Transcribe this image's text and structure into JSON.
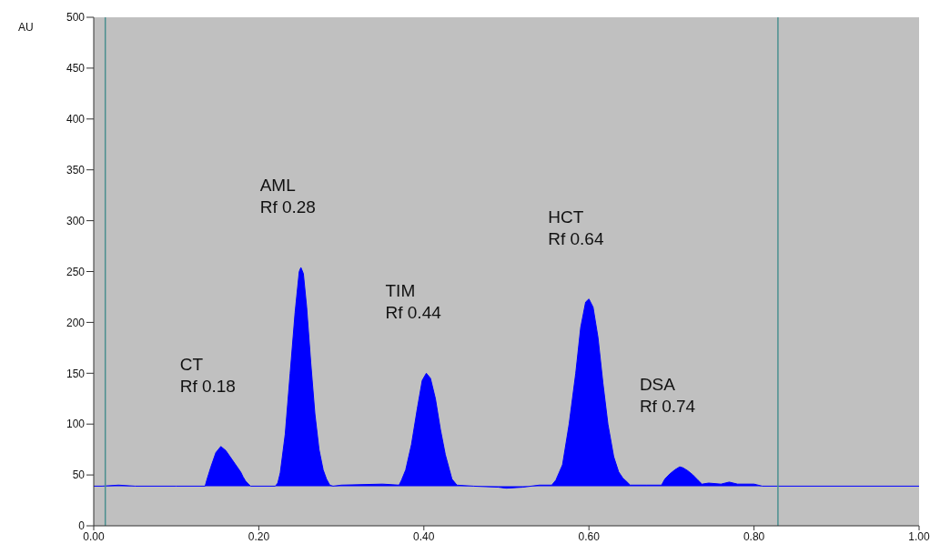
{
  "chart_data": {
    "type": "area",
    "ylabel": "AU",
    "xlim": [
      0,
      1
    ],
    "xticks": [
      {
        "value": 0,
        "label": "0.00"
      },
      {
        "value": 0.2,
        "label": "0.20"
      },
      {
        "value": 0.4,
        "label": "0.40"
      },
      {
        "value": 0.6,
        "label": "0.60"
      },
      {
        "value": 0.8,
        "label": "0.80"
      },
      {
        "value": 1,
        "label": "1.00"
      }
    ],
    "ylim": [
      0,
      500
    ],
    "yticks": [
      0,
      50,
      100,
      150,
      200,
      250,
      300,
      350,
      400,
      450,
      500
    ],
    "series": [
      {
        "color": "#0000ff",
        "x": [
          0,
          0.01,
          0.03,
          0.05,
          0.1,
          0.135,
          0.137,
          0.142,
          0.148,
          0.154,
          0.16,
          0.166,
          0.172,
          0.178,
          0.181,
          0.184,
          0.19,
          0.22,
          0.223,
          0.226,
          0.232,
          0.238,
          0.244,
          0.249,
          0.251,
          0.254,
          0.258,
          0.263,
          0.268,
          0.273,
          0.278,
          0.282,
          0.286,
          0.29,
          0.3,
          0.35,
          0.37,
          0.373,
          0.378,
          0.385,
          0.392,
          0.398,
          0.403,
          0.408,
          0.414,
          0.42,
          0.426,
          0.431,
          0.434,
          0.44,
          0.46,
          0.49,
          0.5,
          0.52,
          0.54,
          0.555,
          0.56,
          0.568,
          0.576,
          0.584,
          0.59,
          0.596,
          0.6,
          0.605,
          0.611,
          0.617,
          0.623,
          0.63,
          0.636,
          0.641,
          0.645,
          0.65,
          0.67,
          0.688,
          0.692,
          0.698,
          0.704,
          0.71,
          0.714,
          0.72,
          0.726,
          0.732,
          0.737,
          0.745,
          0.76,
          0.77,
          0.78,
          0.8,
          0.81,
          1
        ],
        "values": [
          39,
          39,
          40,
          39,
          39,
          39,
          45,
          58,
          72,
          78,
          74,
          67,
          60,
          53,
          48,
          44,
          39,
          39,
          42,
          52,
          90,
          150,
          210,
          250,
          254,
          248,
          215,
          160,
          110,
          75,
          55,
          46,
          40,
          39,
          40,
          41,
          40,
          45,
          55,
          80,
          115,
          143,
          150,
          145,
          125,
          95,
          70,
          55,
          46,
          40,
          39,
          38,
          37,
          38,
          40,
          40,
          45,
          60,
          100,
          150,
          195,
          220,
          223,
          215,
          185,
          140,
          100,
          68,
          53,
          47,
          44,
          40,
          40,
          40,
          46,
          51,
          55,
          58,
          57,
          54,
          50,
          45,
          41,
          42,
          41,
          43,
          41,
          41,
          39,
          39
        ]
      }
    ],
    "ref_lines": [
      {
        "axis": "x",
        "value": 0.014,
        "color": "#4a8f8f"
      },
      {
        "axis": "x",
        "value": 0.829,
        "color": "#4a8f8f"
      }
    ],
    "annotations": [
      {
        "text": "CT\nRf 0.18",
        "x": 0.154,
        "y": 78
      },
      {
        "text": "AML\nRf 0.28",
        "x": 0.251,
        "y": 254
      },
      {
        "text": "TIM\nRf 0.44",
        "x": 0.403,
        "y": 150
      },
      {
        "text": "HCT\nRf 0.64",
        "x": 0.6,
        "y": 223
      },
      {
        "text": "DSA\nRf 0.74",
        "x": 0.711,
        "y": 58
      }
    ]
  }
}
